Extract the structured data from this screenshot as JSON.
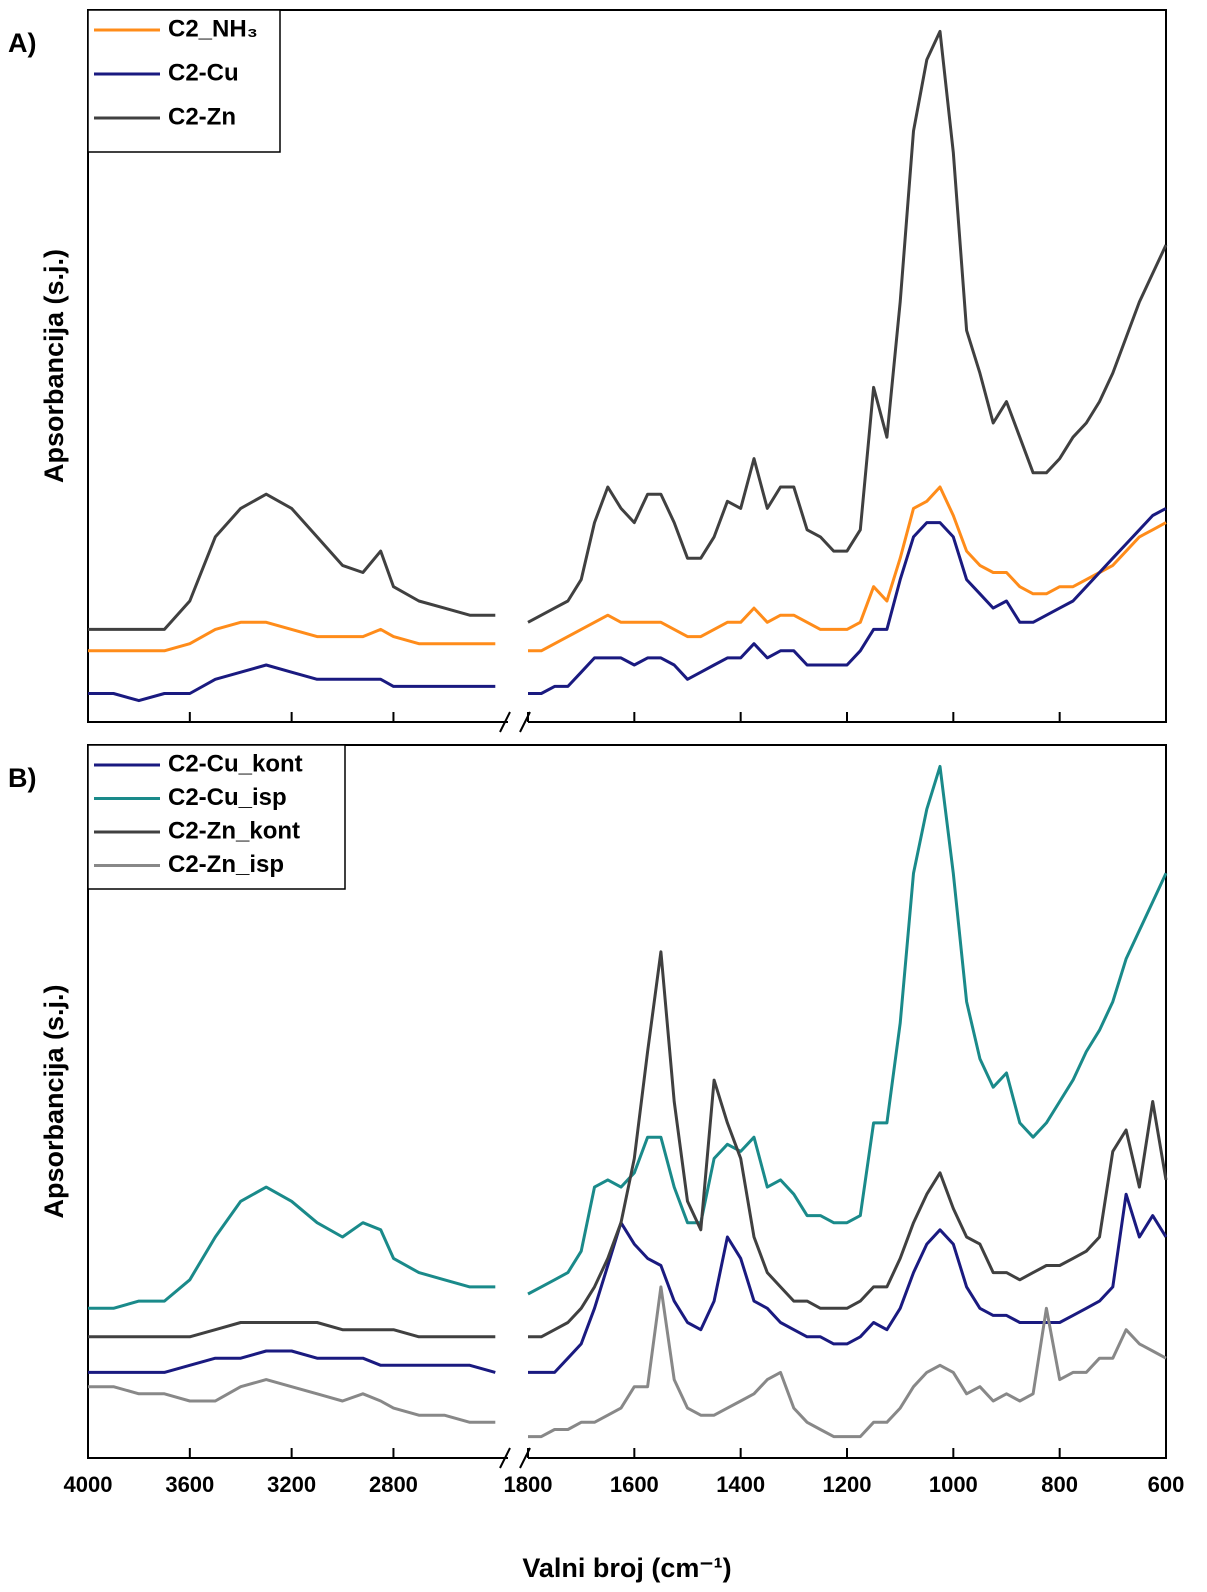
{
  "chart_data": [
    {
      "type": "line",
      "panel_label": "A)",
      "ylabel": "Apsorbancija (s.j.)",
      "xlim": [
        4000,
        600
      ],
      "x_break": [
        2350,
        1800
      ],
      "ylim": [
        0,
        100
      ],
      "x": [
        4000,
        3900,
        3800,
        3700,
        3600,
        3500,
        3400,
        3300,
        3200,
        3100,
        3000,
        2920,
        2850,
        2800,
        2700,
        2600,
        2500,
        2400,
        1800,
        1775,
        1750,
        1725,
        1700,
        1675,
        1650,
        1625,
        1600,
        1575,
        1550,
        1525,
        1500,
        1475,
        1450,
        1425,
        1400,
        1375,
        1350,
        1325,
        1300,
        1275,
        1250,
        1225,
        1200,
        1175,
        1150,
        1125,
        1100,
        1075,
        1050,
        1025,
        1000,
        975,
        950,
        925,
        900,
        875,
        850,
        825,
        800,
        775,
        750,
        725,
        700,
        675,
        650,
        625,
        600
      ],
      "series": [
        {
          "name": "C2_NH₃",
          "color": "#ff8c1a",
          "values": [
            10,
            10,
            10,
            10,
            11,
            13,
            14,
            14,
            13,
            12,
            12,
            12,
            13,
            12,
            11,
            11,
            11,
            11,
            10,
            10,
            11,
            12,
            13,
            14,
            15,
            14,
            14,
            14,
            14,
            13,
            12,
            12,
            13,
            14,
            14,
            16,
            14,
            15,
            15,
            14,
            13,
            13,
            13,
            14,
            19,
            17,
            23,
            30,
            31,
            33,
            29,
            24,
            22,
            21,
            21,
            19,
            18,
            18,
            19,
            19,
            20,
            21,
            22,
            24,
            26,
            27,
            28
          ]
        },
        {
          "name": "C2-Cu",
          "color": "#1a1a80",
          "values": [
            4,
            4,
            3,
            4,
            4,
            6,
            7,
            8,
            7,
            6,
            6,
            6,
            6,
            5,
            5,
            5,
            5,
            5,
            4,
            4,
            5,
            5,
            7,
            9,
            9,
            9,
            8,
            9,
            9,
            8,
            6,
            7,
            8,
            9,
            9,
            11,
            9,
            10,
            10,
            8,
            8,
            8,
            8,
            10,
            13,
            13,
            20,
            26,
            28,
            28,
            26,
            20,
            18,
            16,
            17,
            14,
            14,
            15,
            16,
            17,
            19,
            21,
            23,
            25,
            27,
            29,
            30
          ]
        },
        {
          "name": "C2-Zn",
          "color": "#404040",
          "values": [
            13,
            13,
            13,
            13,
            17,
            26,
            30,
            32,
            30,
            26,
            22,
            21,
            24,
            19,
            17,
            16,
            15,
            15,
            14,
            15,
            16,
            17,
            20,
            28,
            33,
            30,
            28,
            32,
            32,
            28,
            23,
            23,
            26,
            31,
            30,
            37,
            30,
            33,
            33,
            27,
            26,
            24,
            24,
            27,
            47,
            40,
            59,
            83,
            93,
            97,
            80,
            55,
            49,
            42,
            45,
            40,
            35,
            35,
            37,
            40,
            42,
            45,
            49,
            54,
            59,
            63,
            67
          ]
        }
      ]
    },
    {
      "type": "line",
      "panel_label": "B)",
      "ylabel": "Apsorbancija (s.j.)",
      "xlabel": "Valni broj (cm⁻¹)",
      "xlim": [
        4000,
        600
      ],
      "x_break": [
        2350,
        1800
      ],
      "ylim": [
        0,
        100
      ],
      "xticks": [
        4000,
        3600,
        3200,
        2800,
        1800,
        1600,
        1400,
        1200,
        1000,
        800,
        600
      ],
      "x": [
        4000,
        3900,
        3800,
        3700,
        3600,
        3500,
        3400,
        3300,
        3200,
        3100,
        3000,
        2920,
        2850,
        2800,
        2700,
        2600,
        2500,
        2400,
        1800,
        1775,
        1750,
        1725,
        1700,
        1675,
        1650,
        1625,
        1600,
        1575,
        1550,
        1525,
        1500,
        1475,
        1450,
        1425,
        1400,
        1375,
        1350,
        1325,
        1300,
        1275,
        1250,
        1225,
        1200,
        1175,
        1150,
        1125,
        1100,
        1075,
        1050,
        1025,
        1000,
        975,
        950,
        925,
        900,
        875,
        850,
        825,
        800,
        775,
        750,
        725,
        700,
        675,
        650,
        625,
        600
      ],
      "series": [
        {
          "name": "C2-Cu_kont",
          "color": "#1a1a80",
          "values": [
            12,
            12,
            12,
            12,
            13,
            14,
            14,
            15,
            15,
            14,
            14,
            14,
            13,
            13,
            13,
            13,
            13,
            12,
            12,
            12,
            12,
            14,
            16,
            21,
            27,
            33,
            30,
            28,
            27,
            22,
            19,
            18,
            22,
            31,
            28,
            22,
            21,
            19,
            18,
            17,
            17,
            16,
            16,
            17,
            19,
            18,
            21,
            26,
            30,
            32,
            30,
            24,
            21,
            20,
            20,
            19,
            19,
            19,
            19,
            20,
            21,
            22,
            24,
            37,
            31,
            34,
            31
          ]
        },
        {
          "name": "C2-Cu_isp",
          "color": "#1a8a8a",
          "values": [
            21,
            21,
            22,
            22,
            25,
            31,
            36,
            38,
            36,
            33,
            31,
            33,
            32,
            28,
            26,
            25,
            24,
            24,
            23,
            24,
            25,
            26,
            29,
            38,
            39,
            38,
            40,
            45,
            45,
            38,
            33,
            33,
            42,
            44,
            43,
            45,
            38,
            39,
            37,
            34,
            34,
            33,
            33,
            34,
            47,
            47,
            61,
            82,
            91,
            97,
            82,
            64,
            56,
            52,
            54,
            47,
            45,
            47,
            50,
            53,
            57,
            60,
            64,
            70,
            74,
            78,
            82
          ]
        },
        {
          "name": "C2-Zn_kont",
          "color": "#404040",
          "values": [
            17,
            17,
            17,
            17,
            17,
            18,
            19,
            19,
            19,
            19,
            18,
            18,
            18,
            18,
            17,
            17,
            17,
            17,
            17,
            17,
            18,
            19,
            21,
            24,
            28,
            33,
            42,
            57,
            71,
            50,
            36,
            32,
            53,
            47,
            42,
            31,
            26,
            24,
            22,
            22,
            21,
            21,
            21,
            22,
            24,
            24,
            28,
            33,
            37,
            40,
            35,
            31,
            30,
            26,
            26,
            25,
            26,
            27,
            27,
            28,
            29,
            31,
            43,
            46,
            38,
            50,
            39
          ]
        },
        {
          "name": "C2-Zn_isp",
          "color": "#888888",
          "values": [
            10,
            10,
            9,
            9,
            8,
            8,
            10,
            11,
            10,
            9,
            8,
            9,
            8,
            7,
            6,
            6,
            5,
            5,
            3,
            3,
            4,
            4,
            5,
            5,
            6,
            7,
            10,
            10,
            24,
            11,
            7,
            6,
            6,
            7,
            8,
            9,
            11,
            12,
            7,
            5,
            4,
            3,
            3,
            3,
            5,
            5,
            7,
            10,
            12,
            13,
            12,
            9,
            10,
            8,
            9,
            8,
            9,
            21,
            11,
            12,
            12,
            14,
            14,
            18,
            16,
            15,
            14
          ]
        }
      ]
    }
  ]
}
